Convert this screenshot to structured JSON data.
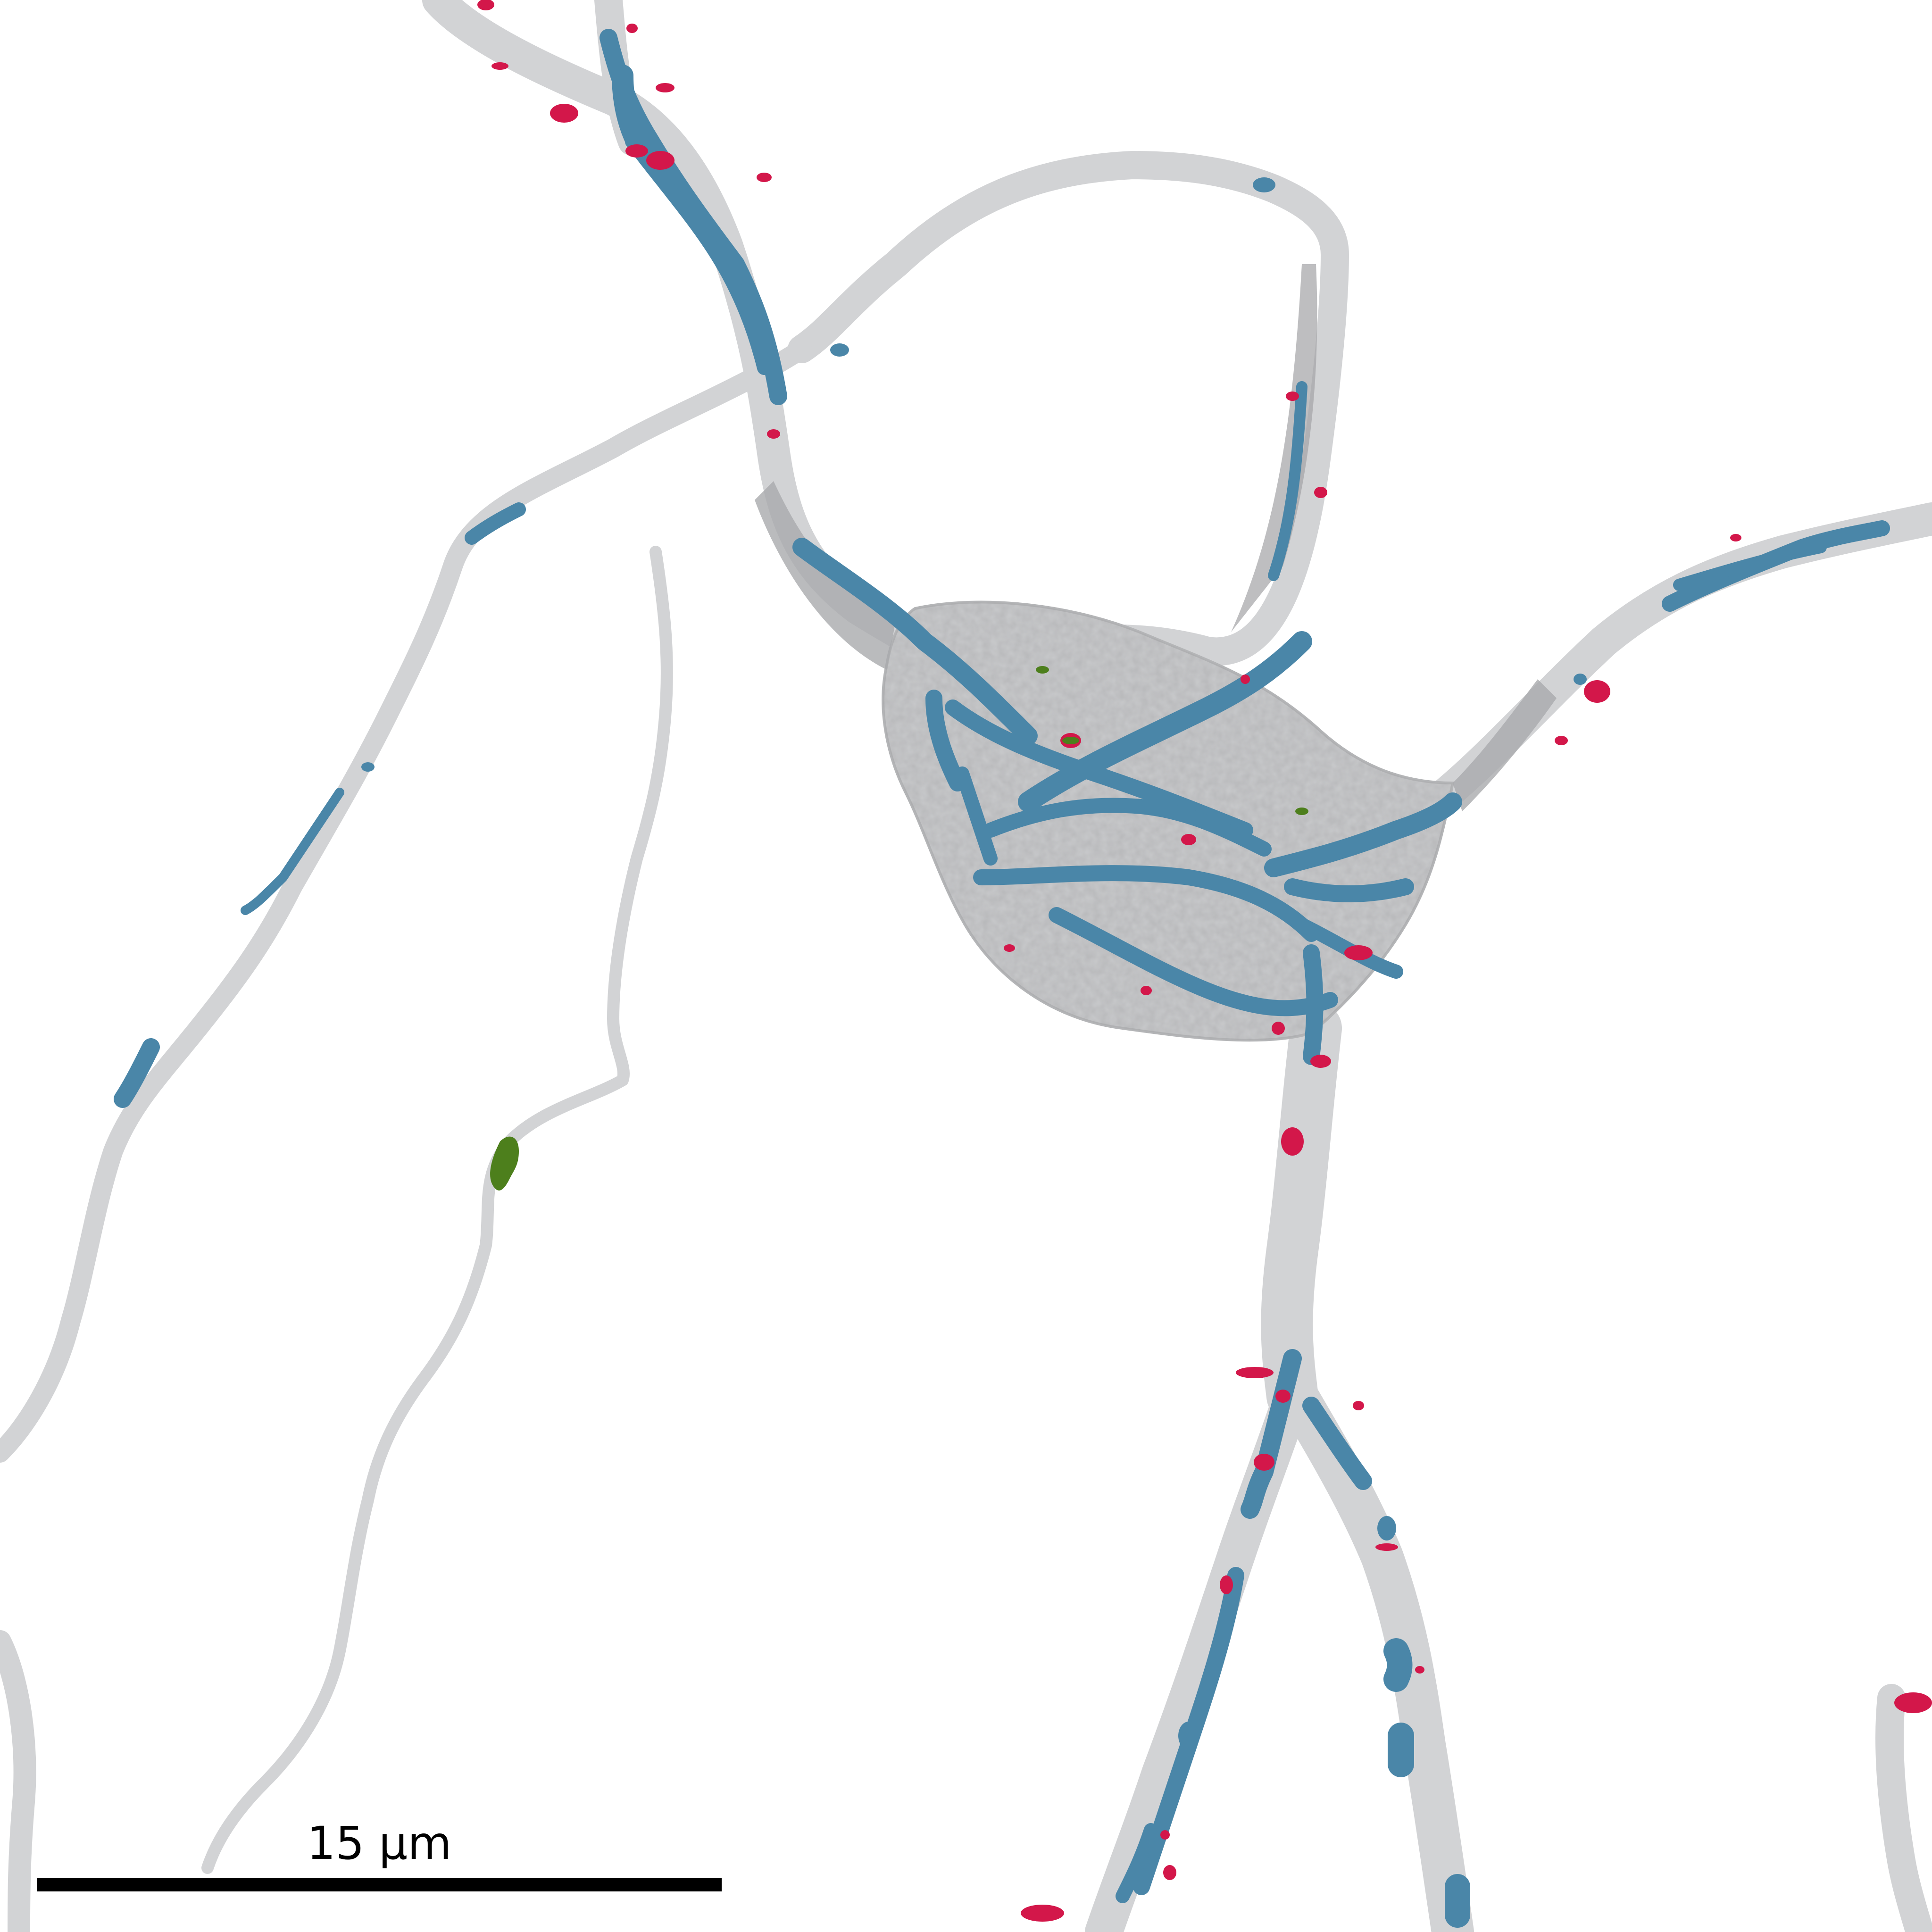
{
  "image": {
    "description_colors": {
      "background": "#ffffff",
      "membrane": "#d2d3d5",
      "membrane_dark": "#8d8e90",
      "mitochondria": "#4a86a8",
      "mitochondria_edge": "#2f5f7c",
      "red_organelle": "#d3174a",
      "green_organelle": "#4d7f1c"
    }
  },
  "scale_bar": {
    "label": "15 µm"
  }
}
